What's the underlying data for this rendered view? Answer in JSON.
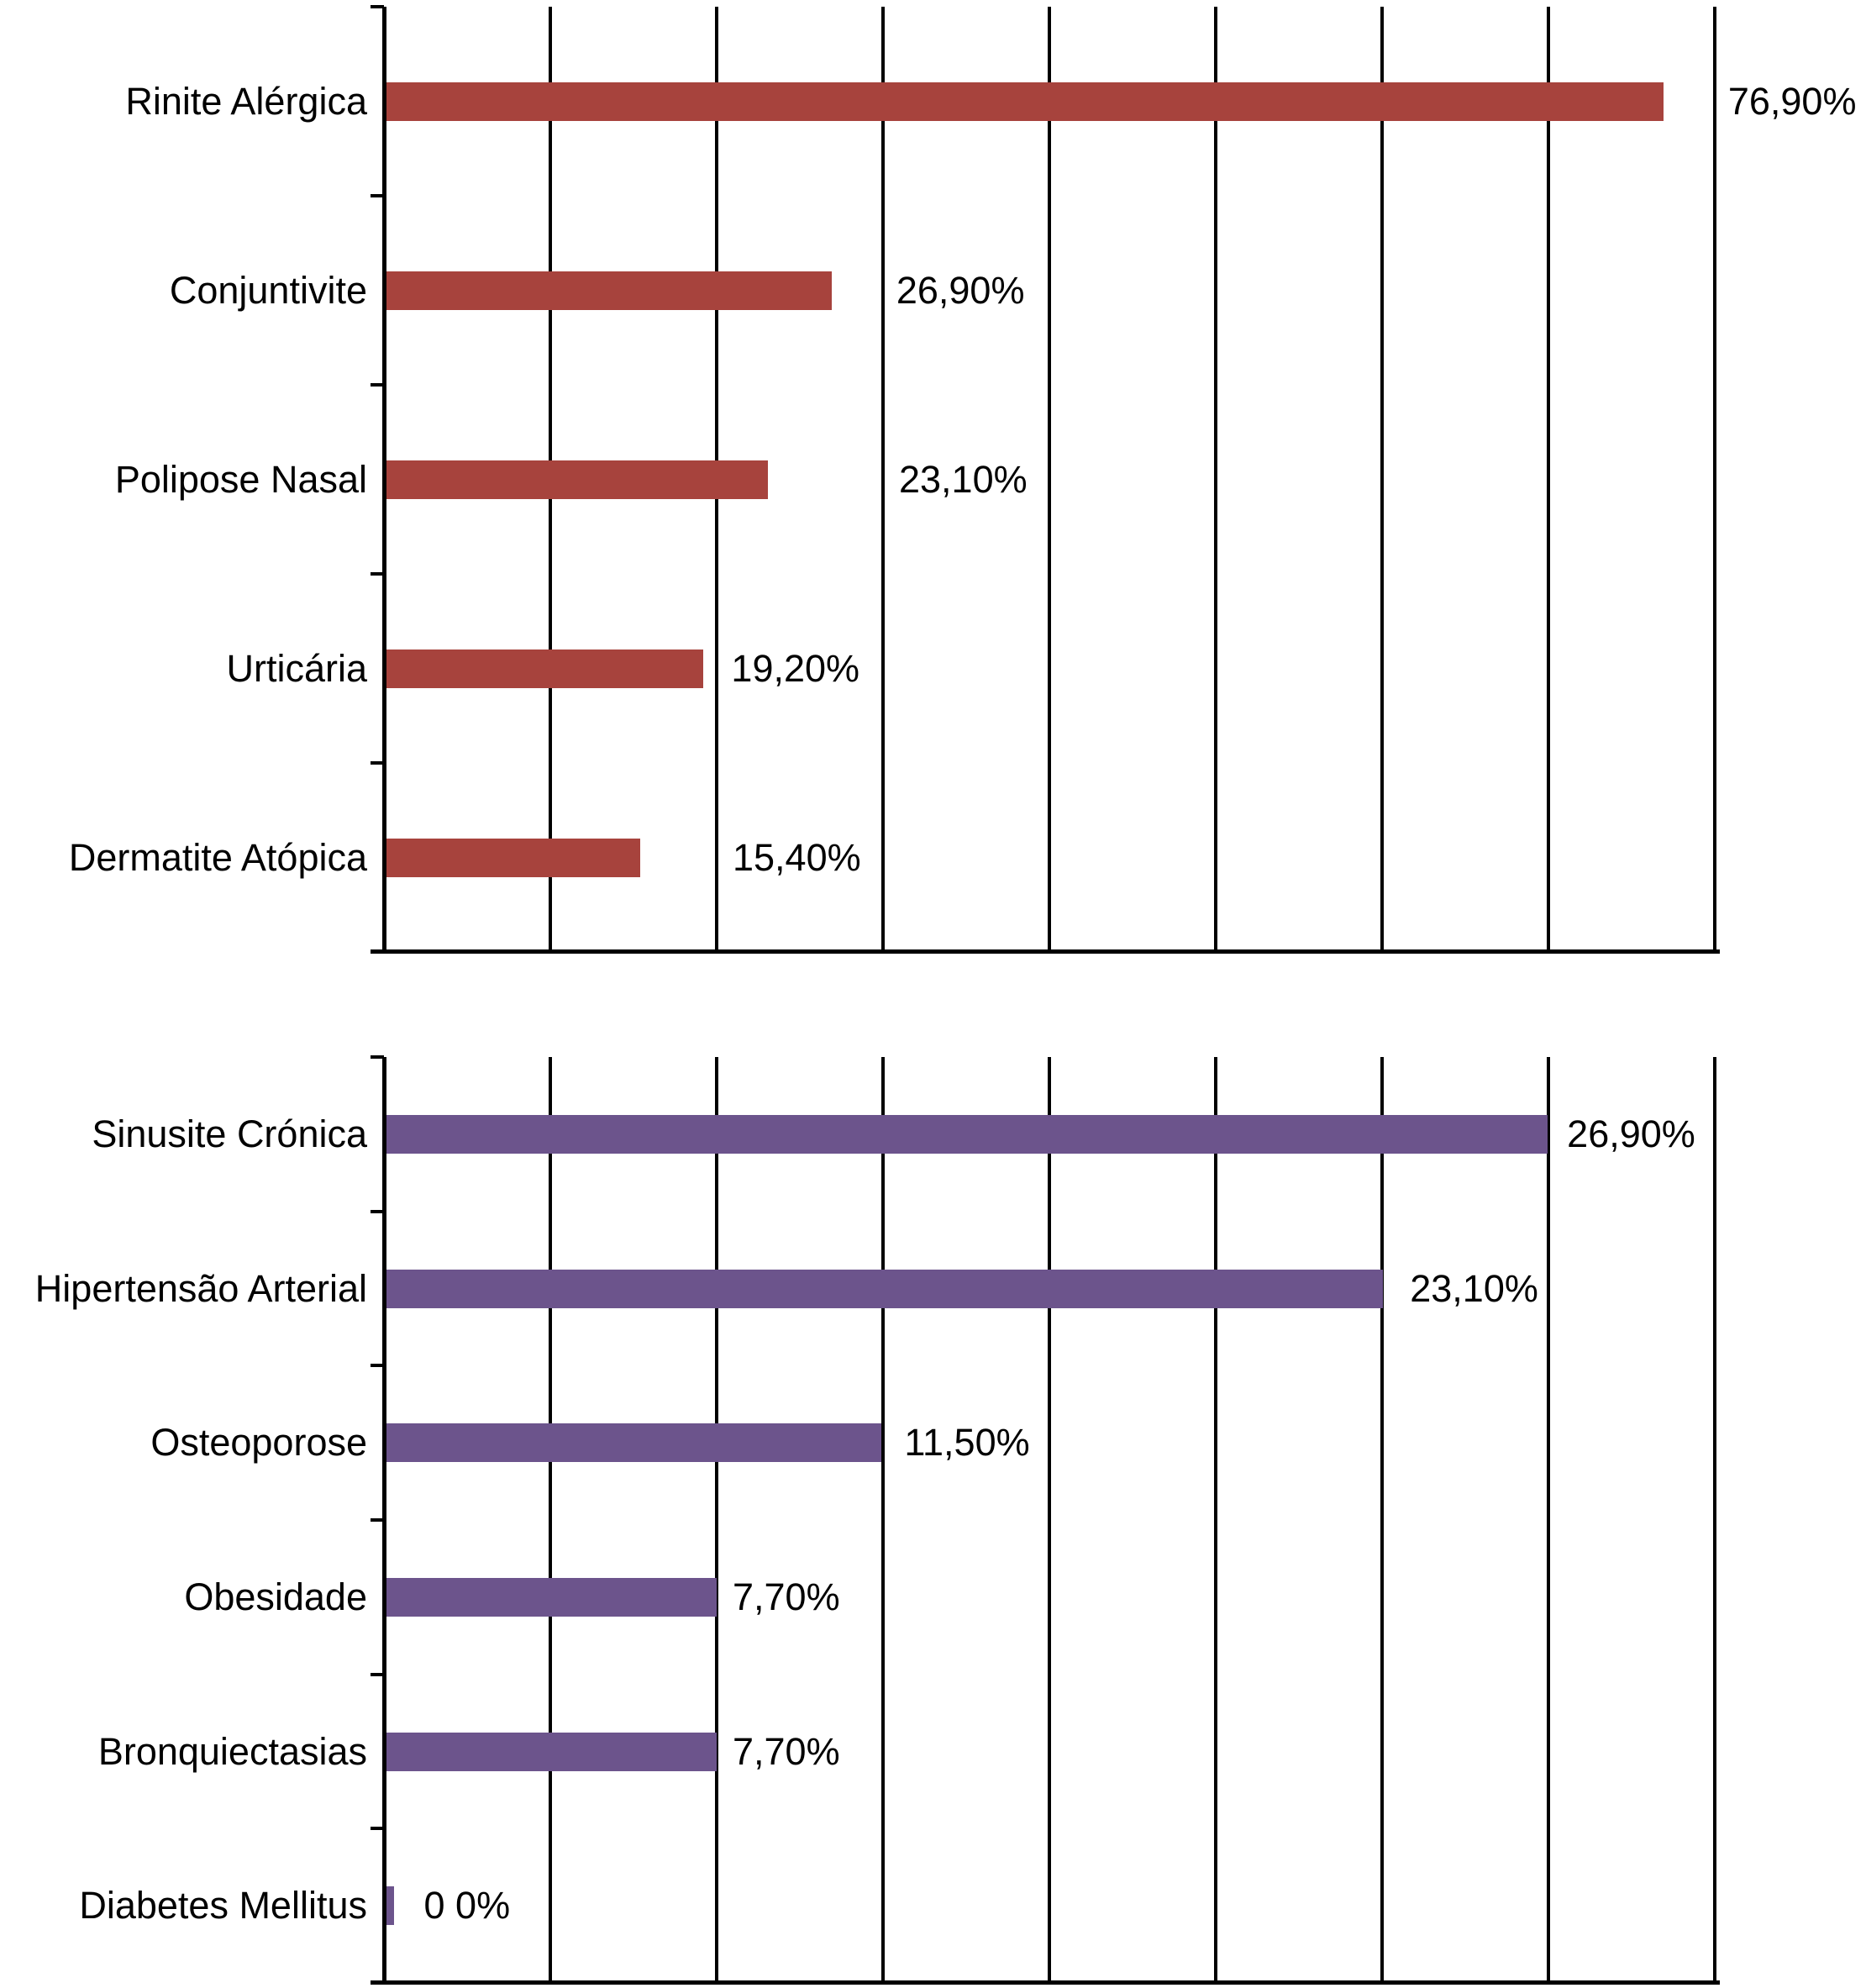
{
  "page": {
    "background_color": "#FFFFFF",
    "text_color": "#000000"
  },
  "chart_data": [
    {
      "type": "bar",
      "orientation": "horizontal",
      "title": "",
      "xlabel": "",
      "ylabel": "",
      "legend": "none",
      "grid": true,
      "gridline_count": 8,
      "xlim": [
        0,
        80
      ],
      "bar_color": "#A7433D",
      "axis_color": "#000000",
      "categories": [
        "Rinite Alérgica",
        "Conjuntivite",
        "Polipose Nasal",
        "Urticária",
        "Dermatite Atópica"
      ],
      "values": [
        76.9,
        26.9,
        23.1,
        19.2,
        15.4
      ],
      "value_labels": [
        "76,90%",
        "26,90%",
        "23,10%",
        "19,20%",
        "15,40%"
      ],
      "value_label_x_frac": [
        1.01,
        0.385,
        0.387,
        0.261,
        0.262
      ]
    },
    {
      "type": "bar",
      "orientation": "horizontal",
      "title": "",
      "xlabel": "",
      "ylabel": "",
      "legend": "none",
      "grid": true,
      "gridline_count": 8,
      "xlim": [
        0,
        30.77
      ],
      "bar_color": "#6C548C",
      "axis_color": "#000000",
      "categories": [
        "Sinusite Crónica",
        "Hipertensão Arterial",
        "Osteoporose",
        "Obesidade",
        "Bronquiectasias",
        "Diabetes Mellitus"
      ],
      "values": [
        26.9,
        23.1,
        11.5,
        7.7,
        7.7,
        0
      ],
      "value_labels": [
        "26,90%",
        "23,10%",
        "11,50%",
        "7,70%",
        "7,70%",
        "0 0%"
      ],
      "value_label_x_frac": [
        0.889,
        0.771,
        0.391,
        0.262,
        0.262,
        0.03
      ]
    }
  ]
}
